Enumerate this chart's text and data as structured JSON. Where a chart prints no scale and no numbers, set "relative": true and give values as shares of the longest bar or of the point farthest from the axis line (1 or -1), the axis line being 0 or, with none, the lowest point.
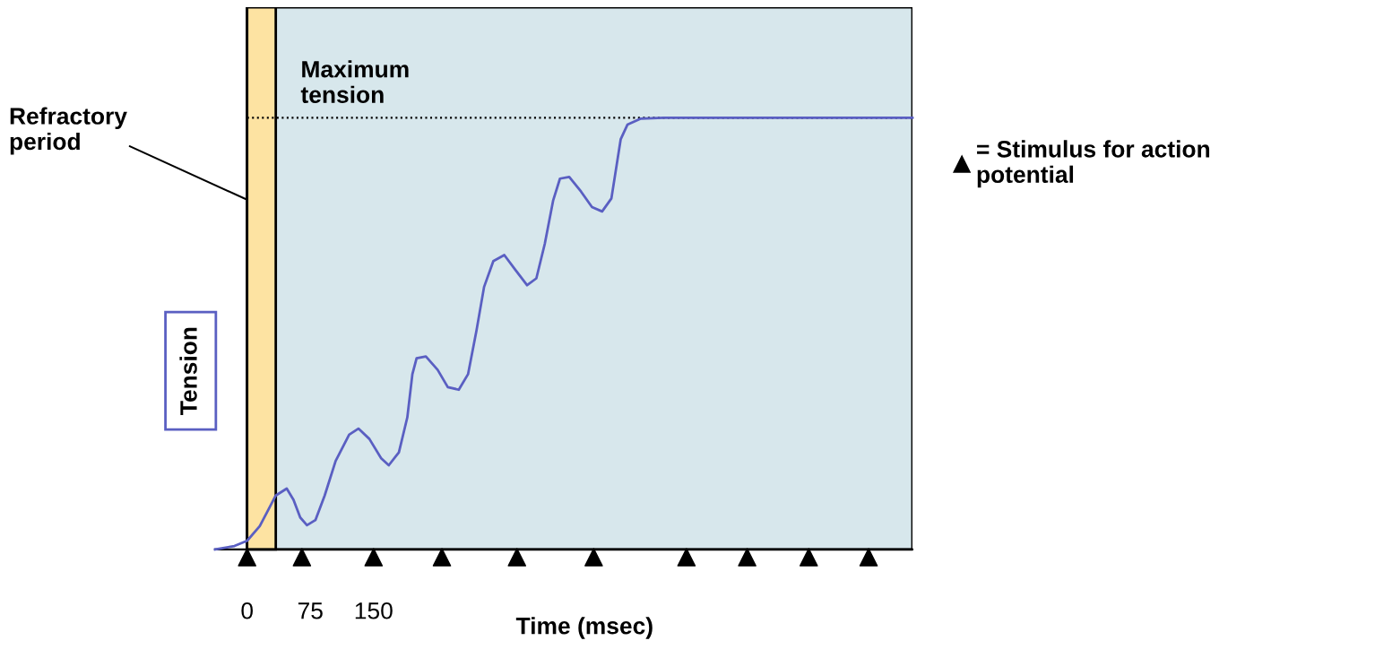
{
  "chart_data": {
    "type": "line",
    "relative": true,
    "xlabel": "Time (msec)",
    "ylabel": "Tension",
    "xlim": [
      -38,
      789
    ],
    "xticks": [
      0,
      75,
      150
    ],
    "tick_labels": "x",
    "legend": "right",
    "series": [
      {
        "color": "#5a5fc2",
        "x": [
          -38,
          -15,
          0,
          15,
          26,
          34,
          47,
          55,
          63,
          71,
          81,
          92,
          105,
          121,
          132,
          145,
          159,
          168,
          180,
          190,
          196,
          201,
          212,
          226,
          238,
          251,
          262,
          272,
          281,
          292,
          305,
          318,
          332,
          343,
          353,
          363,
          371,
          382,
          396,
          409,
          421,
          432,
          443,
          451,
          467,
          494,
          789
        ],
        "values": [
          0,
          0.008,
          0.02,
          0.054,
          0.095,
          0.125,
          0.141,
          0.115,
          0.074,
          0.056,
          0.068,
          0.125,
          0.205,
          0.266,
          0.28,
          0.256,
          0.211,
          0.195,
          0.225,
          0.306,
          0.406,
          0.443,
          0.447,
          0.416,
          0.376,
          0.37,
          0.406,
          0.507,
          0.608,
          0.668,
          0.682,
          0.648,
          0.612,
          0.628,
          0.708,
          0.809,
          0.859,
          0.863,
          0.829,
          0.793,
          0.783,
          0.813,
          0.95,
          0.984,
          0.998,
          1,
          1
        ]
      },
      {
        "type": "scatter",
        "name": "= Stimulus for action\npotential",
        "color": "#000000",
        "marker": "triangle",
        "x": [
          0,
          65,
          150,
          231,
          320,
          411,
          521,
          593,
          666,
          737
        ],
        "values": [
          -0.018,
          -0.018,
          -0.018,
          -0.018,
          -0.018,
          -0.018,
          -0.018,
          -0.018,
          -0.018,
          -0.018
        ]
      }
    ],
    "bands": [
      {
        "axis": "x",
        "from": 0,
        "to": 789,
        "color": "#d7e7ec"
      },
      {
        "axis": "x",
        "from": 0,
        "to": 34,
        "label": "Refractory\nperiod",
        "color": "#fde3a2"
      }
    ],
    "ref_lines": [
      {
        "axis": "y",
        "value": 1,
        "label": "Maximum\ntension",
        "line_style": "dotted",
        "color": "#000000"
      }
    ]
  }
}
